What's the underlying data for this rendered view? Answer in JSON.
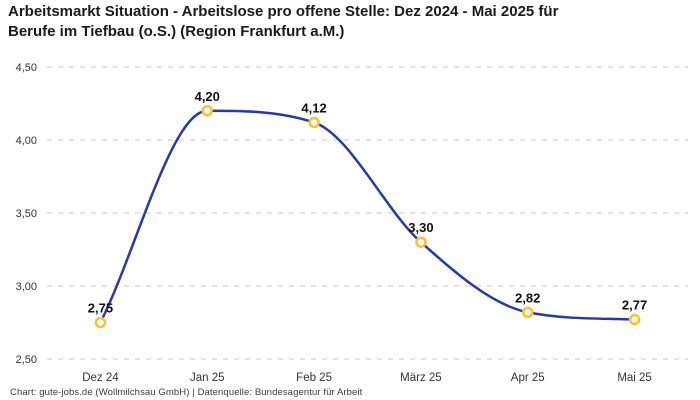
{
  "header": {
    "title_line1": "Arbeitsmarkt Situation - Arbeitslose pro offene Stelle: Dez 2024 - Mai 2025 für",
    "title_line2": "Berufe im Tiefbau (o.S.) (Region Frankfurt a.M.)"
  },
  "footer": {
    "text": "Chart: gute-jobs.de (Wollmilchsau GmbH) | Datenquelle: Bundesagentur für Arbeit"
  },
  "chart_data": {
    "type": "line",
    "title": "Arbeitsmarkt Situation - Arbeitslose pro offene Stelle: Dez 2024 - Mai 2025 für Berufe im Tiefbau (o.S.) (Region Frankfurt a.M.)",
    "categories": [
      "Dez 24",
      "Jan 25",
      "Feb 25",
      "März 25",
      "Apr 25",
      "Mai 25"
    ],
    "values": [
      2.75,
      4.2,
      4.12,
      3.3,
      2.82,
      2.77
    ],
    "value_labels": [
      "2,75",
      "4,20",
      "4,12",
      "3,30",
      "2,82",
      "2,77"
    ],
    "ylim": [
      2.5,
      4.5
    ],
    "y_ticks": [
      2.5,
      3.0,
      3.5,
      4.0,
      4.5
    ],
    "y_tick_labels": [
      "2,50",
      "3,00",
      "3,50",
      "4,00",
      "4,50"
    ],
    "xlabel": "",
    "ylabel": "",
    "grid": "horizontal-dashed",
    "legend": "none",
    "line_interpolation": "monotone",
    "colors": {
      "line": "#2539a8",
      "marker_ring": "#fdbf2f",
      "marker_fill": "#ffffff",
      "grid": "#c7c7c7",
      "axis_text": "#333333",
      "data_label": "#111111",
      "title": "#1a1a1a",
      "footer_text": "#3c3c3c",
      "background": "#ffffff"
    }
  }
}
